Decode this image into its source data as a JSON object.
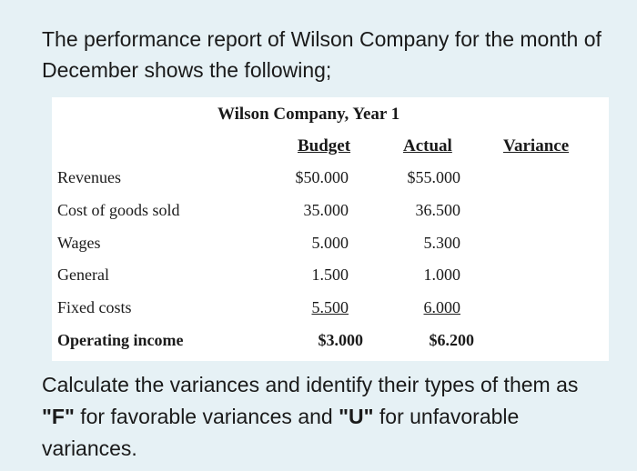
{
  "intro_text": "The performance report of Wilson Company for the month of December shows the following;",
  "table": {
    "title": "Wilson Company, Year 1",
    "headers": {
      "budget": "Budget",
      "actual": "Actual",
      "variance": "Variance"
    },
    "rows": [
      {
        "label": "Revenues",
        "budget": "$50.000",
        "actual": "$55.000"
      },
      {
        "label": "Cost of goods sold",
        "budget": "35.000",
        "actual": "36.500"
      },
      {
        "label": "Wages",
        "budget": "5.000",
        "actual": "5.300"
      },
      {
        "label": "General",
        "budget": "1.500",
        "actual": "1.000"
      },
      {
        "label": "Fixed costs",
        "budget": "5.500",
        "actual": "6.000"
      },
      {
        "label": "Operating income",
        "budget": "$3.000",
        "actual": "$6.200"
      }
    ]
  },
  "outro": {
    "part1": "Calculate the variances and identify their types of them as ",
    "f_code": "\"F\"",
    "part2": " for favorable variances and ",
    "u_code": "\"U\"",
    "part3": " for unfavorable variances."
  }
}
